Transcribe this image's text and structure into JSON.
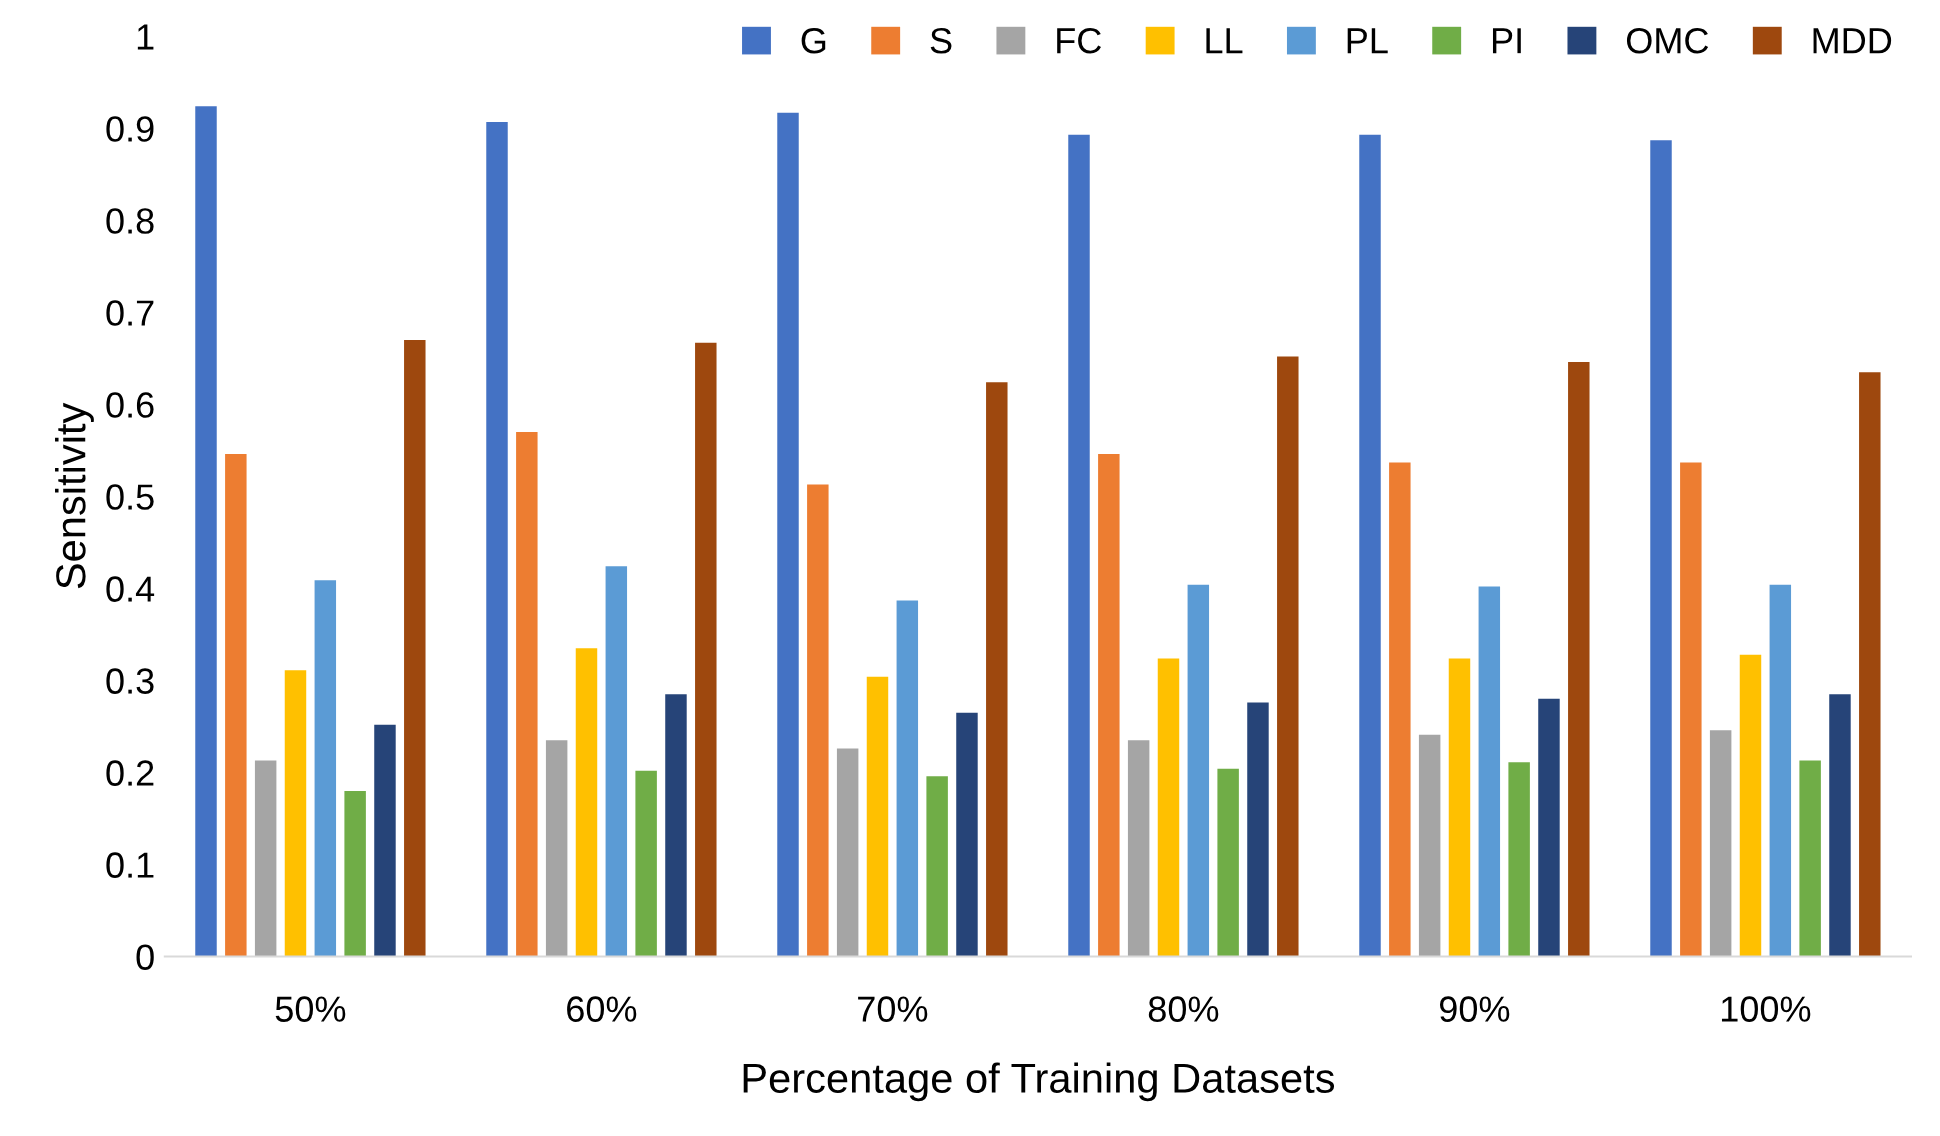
{
  "chart_data": {
    "type": "bar",
    "xlabel": "Percentage of Training Datasets",
    "ylabel": "Sensitivity",
    "categories": [
      "50%",
      "60%",
      "70%",
      "80%",
      "90%",
      "100%"
    ],
    "series": [
      {
        "name": "G",
        "color": "#4472c4",
        "values": [
          0.924,
          0.907,
          0.917,
          0.893,
          0.893,
          0.887
        ]
      },
      {
        "name": "S",
        "color": "#ed7d31",
        "values": [
          0.546,
          0.57,
          0.513,
          0.546,
          0.537,
          0.537
        ]
      },
      {
        "name": "FC",
        "color": "#a5a5a5",
        "values": [
          0.213,
          0.235,
          0.226,
          0.235,
          0.241,
          0.246
        ]
      },
      {
        "name": "LL",
        "color": "#ffc000",
        "values": [
          0.311,
          0.335,
          0.304,
          0.324,
          0.324,
          0.328
        ]
      },
      {
        "name": "PL",
        "color": "#5b9bd5",
        "values": [
          0.409,
          0.424,
          0.387,
          0.404,
          0.402,
          0.404
        ]
      },
      {
        "name": "PI",
        "color": "#70ad47",
        "values": [
          0.18,
          0.202,
          0.196,
          0.204,
          0.211,
          0.213
        ]
      },
      {
        "name": "OMC",
        "color": "#264478",
        "values": [
          0.252,
          0.285,
          0.265,
          0.276,
          0.28,
          0.285
        ]
      },
      {
        "name": "MDD",
        "color": "#9e480e",
        "values": [
          0.67,
          0.667,
          0.624,
          0.652,
          0.646,
          0.635
        ]
      }
    ],
    "ylim": [
      0,
      1
    ],
    "yticks": [
      0,
      0.1,
      0.2,
      0.3,
      0.4,
      0.5,
      0.6,
      0.7,
      0.8,
      0.9,
      1
    ],
    "grid": false,
    "legend": "top right"
  }
}
